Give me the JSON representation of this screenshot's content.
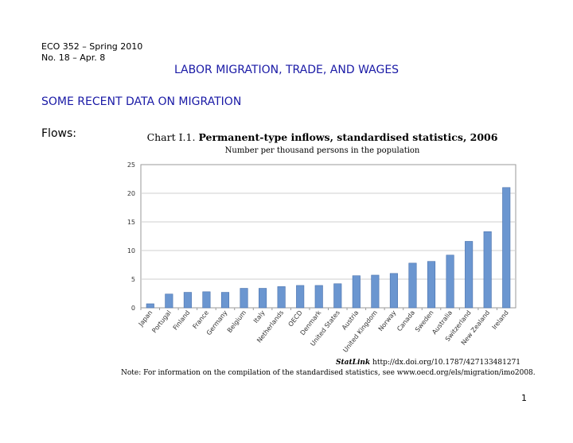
{
  "header": {
    "course": "ECO 352 – Spring 2010",
    "lecture": "No. 18 – Apr. 8",
    "title": "LABOR MIGRATION, TRADE, AND WAGES",
    "section": "SOME RECENT DATA ON MIGRATION",
    "flows_label": "Flows:"
  },
  "chart_data": {
    "type": "bar",
    "title_prefix": "Chart I.1.",
    "title": "Permanent-type inflows, standardised statistics, 2006",
    "subtitle": "Number per thousand persons in the population",
    "categories": [
      "Japan",
      "Portugal",
      "Finland",
      "France",
      "Germany",
      "Belgium",
      "Italy",
      "Netherlands",
      "OECD",
      "Denmark",
      "United States",
      "Austria",
      "United Kingdom",
      "Norway",
      "Canada",
      "Sweden",
      "Australia",
      "Switzerland",
      "New Zealand",
      "Ireland"
    ],
    "values": [
      0.7,
      2.4,
      2.7,
      2.8,
      2.7,
      3.4,
      3.4,
      3.7,
      3.9,
      3.9,
      4.2,
      5.6,
      5.7,
      6.0,
      7.8,
      8.1,
      9.2,
      11.6,
      13.3,
      21.0
    ],
    "ylim": [
      0,
      25
    ],
    "yticks": [
      "0",
      "5",
      "10",
      "15",
      "20",
      "25"
    ],
    "grid": true,
    "bar_color": "#6b96d0"
  },
  "footer": {
    "statlink_label": "StatLink",
    "statlink_url": "http://dx.doi.org/10.1787/427133481271",
    "note_label": "Note:",
    "note_text": "For information on the compilation of the standardised statistics, see www.oecd.org/els/migration/imo2008.",
    "page_number": "1"
  }
}
